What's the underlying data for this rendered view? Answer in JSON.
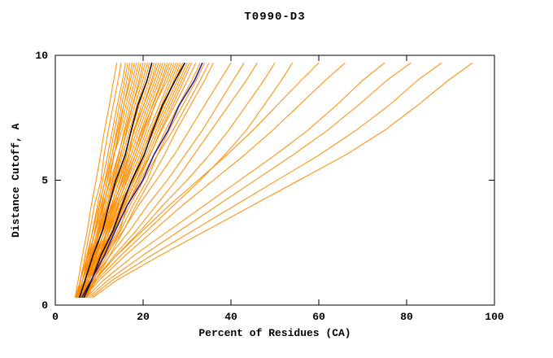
{
  "chart_data": {
    "type": "line",
    "title": "T0990-D3",
    "xlabel": "Percent of Residues (CA)",
    "ylabel": "Distance Cutoff, A",
    "xlim": [
      0,
      100
    ],
    "ylim": [
      0,
      10
    ],
    "xticks": [
      0,
      20,
      40,
      60,
      80,
      100
    ],
    "yticks": [
      0,
      5,
      10
    ],
    "grid": false,
    "legend": "none",
    "colors": {
      "model": "#ff8c00",
      "reference": "#000000",
      "selected": "#1a1aa6"
    },
    "y_grid": [
      0.3,
      1,
      2,
      3,
      4,
      5,
      6,
      7,
      8,
      9,
      9.7
    ],
    "series": [
      {
        "color": "#ff8c00",
        "x": [
          4.5,
          5.2,
          6.2,
          7.3,
          8.2,
          9.3,
          10.3,
          11.2,
          12.3,
          13.3,
          14
        ]
      },
      {
        "color": "#ff8c00",
        "x": [
          5,
          5.7,
          6.8,
          7.9,
          8.9,
          10.4,
          11.1,
          12.1,
          13.2,
          14.3,
          15
        ]
      },
      {
        "color": "#ff8c00",
        "x": [
          5.5,
          6.2,
          7.4,
          8.5,
          9.6,
          10.8,
          11.9,
          13,
          14.1,
          15.3,
          16
        ]
      },
      {
        "color": "#ff8c00",
        "x": [
          6,
          6.7,
          7.9,
          9,
          10.1,
          11.3,
          12.4,
          13.5,
          14.6,
          15.8,
          16.5
        ]
      },
      {
        "color": "#ff8c00",
        "x": [
          6.5,
          7.2,
          8.4,
          9.9,
          10.6,
          11.8,
          12.9,
          14,
          15.1,
          16.3,
          17
        ]
      },
      {
        "color": "#ff8c00",
        "x": [
          7,
          7.7,
          8.9,
          10,
          11.1,
          12.3,
          13.4,
          14.5,
          15.6,
          16.8,
          17.5
        ]
      },
      {
        "color": "#ff8c00",
        "x": [
          4.8,
          5.7,
          7.2,
          8.6,
          9.9,
          11.4,
          12.9,
          14.2,
          15.6,
          17.1,
          18
        ]
      },
      {
        "color": "#ff8c00",
        "x": [
          5.3,
          6.2,
          7.7,
          9.1,
          10.4,
          11.9,
          13.4,
          14.7,
          16.1,
          17.6,
          18.5
        ]
      },
      {
        "color": "#ff8c00",
        "x": [
          5.8,
          6.7,
          8.2,
          9.6,
          10.9,
          12.4,
          13.3,
          15.2,
          16.6,
          18.1,
          19
        ]
      },
      {
        "color": "#ff8c00",
        "x": [
          6.3,
          7.2,
          8.7,
          10.1,
          11.4,
          12.9,
          14.4,
          15.7,
          17.1,
          18.6,
          19.5
        ]
      },
      {
        "color": "#ff8c00",
        "x": [
          6.8,
          7.7,
          9.2,
          10.6,
          11.9,
          13.4,
          14.9,
          16.2,
          17.6,
          19.1,
          20
        ]
      },
      {
        "color": "#ff8c00",
        "x": [
          4.6,
          5.7,
          7.5,
          9.2,
          10.8,
          12.6,
          14.3,
          15.9,
          17.6,
          19.4,
          20.5
        ]
      },
      {
        "color": "#ff8c00",
        "x": [
          5.1,
          6.2,
          8,
          9.7,
          11.9,
          13.1,
          14.8,
          16.4,
          18.1,
          19.9,
          21
        ]
      },
      {
        "color": "#ff8c00",
        "x": [
          5.6,
          6.7,
          8.5,
          10.2,
          11.8,
          13.6,
          15.3,
          16.9,
          18.6,
          20.4,
          21.5
        ]
      },
      {
        "color": "#ff8c00",
        "x": [
          6.1,
          7.2,
          9,
          10.7,
          12.3,
          14.1,
          15.8,
          17.4,
          19.1,
          20.9,
          22
        ]
      },
      {
        "color": "#ff8c00",
        "x": [
          6.6,
          7.7,
          9.5,
          11.2,
          12.8,
          14.6,
          16.3,
          17.9,
          19.6,
          21.4,
          22.5
        ]
      },
      {
        "color": "#ff8c00",
        "x": [
          7.1,
          8.2,
          10,
          11.7,
          13.3,
          15.1,
          16.8,
          17.8,
          20.1,
          21.9,
          23
        ]
      },
      {
        "color": "#ff8c00",
        "x": [
          4.9,
          6.2,
          8.2,
          10.3,
          12.2,
          14.2,
          16.2,
          18.1,
          20.1,
          22.2,
          23.5
        ]
      },
      {
        "color": "#ff8c00",
        "x": [
          5.4,
          6.7,
          8.7,
          10.8,
          12.7,
          14.7,
          16.7,
          18.6,
          20.6,
          22.7,
          24
        ]
      },
      {
        "color": "#ff8c00",
        "x": [
          5.9,
          7.2,
          9.2,
          11.3,
          13.2,
          15.2,
          17.2,
          19.1,
          21.1,
          23.2,
          24.5
        ]
      },
      {
        "color": "#ff8c00",
        "x": [
          6.4,
          7.7,
          10.3,
          11.8,
          13.7,
          15.7,
          17.7,
          19.6,
          21.6,
          23.7,
          25
        ]
      },
      {
        "color": "#ff8c00",
        "x": [
          6.9,
          8.2,
          10.2,
          12.3,
          14.2,
          16.2,
          18.2,
          20.1,
          22.1,
          24.2,
          25.5
        ]
      },
      {
        "color": "#ff8c00",
        "x": [
          4.7,
          6.2,
          8.5,
          10.9,
          13,
          15.4,
          17.7,
          19.8,
          22.2,
          24.5,
          26
        ]
      },
      {
        "color": "#ff8c00",
        "x": [
          5.2,
          6.7,
          9,
          11.4,
          13.5,
          15.9,
          18.2,
          20.3,
          22.7,
          25,
          26.5
        ]
      },
      {
        "color": "#ff8c00",
        "x": [
          5.7,
          7.2,
          9.5,
          11.9,
          14,
          16.4,
          18.7,
          20.8,
          22.6,
          25.5,
          27
        ]
      },
      {
        "color": "#ff8c00",
        "x": [
          6.2,
          7.7,
          10,
          12.4,
          14.5,
          16.9,
          19.2,
          21.3,
          23.7,
          26,
          27.5
        ]
      },
      {
        "color": "#ff8c00",
        "x": [
          6.7,
          8.2,
          10.5,
          12.9,
          15,
          17.4,
          19.7,
          21.8,
          24.2,
          26.5,
          28
        ]
      },
      {
        "color": "#ff8c00",
        "x": [
          7.2,
          8.7,
          11,
          13.4,
          15.5,
          17.9,
          20.2,
          22.3,
          24.7,
          27,
          28.5
        ]
      },
      {
        "color": "#ff8c00",
        "x": [
          5,
          6.7,
          9.3,
          12,
          14.4,
          17.7,
          19.6,
          22,
          24.7,
          27.3,
          29
        ]
      },
      {
        "color": "#ff8c00",
        "x": [
          5.5,
          7.2,
          9.8,
          12.5,
          14.9,
          17.5,
          20.1,
          22.5,
          25.2,
          27.8,
          29.5
        ]
      },
      {
        "color": "#ff8c00",
        "x": [
          6,
          7.7,
          10.3,
          13,
          15.4,
          18,
          20.6,
          23,
          25.7,
          28.3,
          30
        ]
      },
      {
        "color": "#ff8c00",
        "x": [
          6.5,
          8.2,
          10.8,
          13.5,
          15.9,
          18.5,
          21.1,
          23.5,
          26.2,
          28.8,
          30.5
        ]
      },
      {
        "color": "#ff8c00",
        "x": [
          7,
          8.7,
          11.3,
          14.7,
          16.4,
          19,
          21.6,
          24,
          26.7,
          29.3,
          31
        ]
      },
      {
        "color": "#ff8c00",
        "x": [
          5.2,
          7.1,
          10,
          13,
          15.7,
          18.6,
          21.5,
          24.2,
          27.2,
          30.1,
          32
        ]
      },
      {
        "color": "#ff8c00",
        "x": [
          5.7,
          7.6,
          10.6,
          13.6,
          16.3,
          19.4,
          22.4,
          25.1,
          28.1,
          31.1,
          33
        ]
      },
      {
        "color": "#ff8c00",
        "x": [
          6.2,
          8.1,
          11.2,
          14.3,
          17,
          20.1,
          23.2,
          25.9,
          29,
          32.1,
          34
        ]
      },
      {
        "color": "#ff8c00",
        "x": [
          6.7,
          8.7,
          11.8,
          14.9,
          17.7,
          20.9,
          23.2,
          26.8,
          29.9,
          33,
          35
        ]
      },
      {
        "color": "#ff8c00",
        "x": [
          7.2,
          9.2,
          12.4,
          15.6,
          18.4,
          21.6,
          24.8,
          27.6,
          30.8,
          34,
          36
        ]
      },
      {
        "color": "#ff8c00",
        "x": [
          5.4,
          7.5,
          11.5,
          15.5,
          19,
          23,
          27,
          30.5,
          34,
          37.5,
          40
        ]
      },
      {
        "color": "#ff8c00",
        "x": [
          6,
          8.5,
          12.5,
          17,
          21,
          25.5,
          29.5,
          33.5,
          37,
          40.5,
          43
        ]
      },
      {
        "color": "#ff8c00",
        "x": [
          6.5,
          9,
          13.5,
          18.5,
          23,
          27.5,
          31.5,
          35.5,
          39.5,
          43.5,
          46
        ]
      },
      {
        "color": "#ff8c00",
        "x": [
          5.8,
          9,
          14,
          19.5,
          24.5,
          30,
          35,
          39.5,
          43.5,
          47.5,
          50
        ]
      },
      {
        "color": "#ff8c00",
        "x": [
          6.3,
          9.5,
          15,
          21,
          27,
          33,
          38.5,
          43.5,
          47.5,
          51.5,
          54
        ]
      },
      {
        "color": "#ff8c00",
        "x": [
          6,
          9,
          14,
          20,
          26,
          32.5,
          39,
          45,
          50.5,
          56,
          60
        ]
      },
      {
        "color": "#ff8c00",
        "x": [
          6.5,
          10,
          16,
          22.5,
          29,
          36,
          43,
          49.5,
          55.5,
          61.5,
          66
        ]
      },
      {
        "color": "#ff8c00",
        "x": [
          7,
          11,
          18,
          26,
          34,
          42,
          50,
          57.5,
          64,
          70,
          75
        ]
      },
      {
        "color": "#ff8c00",
        "x": [
          7.5,
          12,
          20,
          28.5,
          37,
          45.5,
          54,
          62,
          69,
          75.5,
          81
        ]
      },
      {
        "color": "#ff8c00",
        "x": [
          8,
          13,
          22,
          31.5,
          41,
          50.5,
          60,
          68.5,
          76,
          82.5,
          88
        ]
      },
      {
        "color": "#ff8c00",
        "x": [
          8.5,
          14,
          24,
          34.5,
          45,
          55.5,
          66,
          75,
          82.5,
          89.5,
          95
        ]
      },
      {
        "color": "#000000",
        "w": 1.5,
        "x": [
          5.5,
          6.8,
          8.6,
          10.8,
          12.2,
          13.8,
          15.9,
          17.3,
          18.8,
          20.9,
          22
        ]
      },
      {
        "color": "#000000",
        "w": 1.5,
        "x": [
          6.5,
          8.3,
          10.4,
          13.2,
          15.2,
          17.4,
          20.2,
          22.2,
          24.4,
          27.3,
          29.5
        ]
      },
      {
        "color": "#1a1aa6",
        "w": 1.5,
        "x": [
          6,
          8.2,
          11.2,
          13.7,
          16.4,
          19.9,
          22.4,
          25.7,
          28.2,
          31.7,
          33.5
        ]
      }
    ]
  }
}
